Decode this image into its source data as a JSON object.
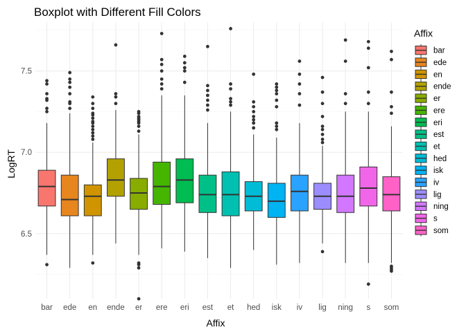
{
  "chart_data": {
    "type": "boxplot",
    "title": "Boxplot with Different Fill Colors",
    "xlabel": "Affix",
    "ylabel": "LogRT",
    "ylim": [
      6.1,
      7.8
    ],
    "yticks": [
      6.5,
      7.0,
      7.5
    ],
    "ytick_labels": [
      "6.5",
      "7.0",
      "7.5"
    ],
    "grid": true,
    "legend": {
      "title": "Affix",
      "position": "right"
    },
    "categories": [
      "bar",
      "ede",
      "en",
      "ende",
      "er",
      "ere",
      "eri",
      "est",
      "et",
      "hed",
      "isk",
      "iv",
      "lig",
      "ning",
      "s",
      "som"
    ],
    "colors": [
      "#F8766D",
      "#E7851E",
      "#D09400",
      "#B2A100",
      "#89AC00",
      "#45B500",
      "#00BC51",
      "#00C087",
      "#00C0B2",
      "#00BCD6",
      "#00B3F2",
      "#29A3FF",
      "#9C8DFF",
      "#D277FF",
      "#F166E8",
      "#FF61C7"
    ],
    "boxes": [
      {
        "label": "bar",
        "whisker_low": 6.37,
        "q1": 6.67,
        "median": 6.79,
        "q3": 6.89,
        "whisker_high": 7.18,
        "outliers": [
          6.31,
          7.25,
          7.27,
          7.32,
          7.33,
          7.36,
          7.42,
          7.44
        ]
      },
      {
        "label": "ede",
        "whisker_low": 6.29,
        "q1": 6.61,
        "median": 6.71,
        "q3": 6.86,
        "whisker_high": 7.24,
        "outliers": [
          7.27,
          7.3,
          7.31,
          7.36,
          7.4,
          7.43,
          7.45,
          7.49
        ]
      },
      {
        "label": "en",
        "whisker_low": 6.37,
        "q1": 6.61,
        "median": 6.73,
        "q3": 6.8,
        "whisker_high": 7.06,
        "outliers": [
          6.32,
          7.08,
          7.1,
          7.12,
          7.14,
          7.16,
          7.18,
          7.19,
          7.21,
          7.23,
          7.24,
          7.27,
          7.3,
          7.34
        ]
      },
      {
        "label": "ende",
        "whisker_low": 6.44,
        "q1": 6.73,
        "median": 6.83,
        "q3": 6.96,
        "whisker_high": 7.26,
        "outliers": [
          7.3,
          7.34,
          7.36,
          7.66
        ]
      },
      {
        "label": "er",
        "whisker_low": 6.37,
        "q1": 6.65,
        "median": 6.75,
        "q3": 6.84,
        "whisker_high": 7.11,
        "outliers": [
          6.1,
          6.29,
          6.31,
          6.32,
          7.13,
          7.16,
          7.18,
          7.19,
          7.2,
          7.21,
          7.22,
          7.24,
          7.25
        ]
      },
      {
        "label": "ere",
        "whisker_low": 6.41,
        "q1": 6.68,
        "median": 6.79,
        "q3": 6.94,
        "whisker_high": 7.35,
        "outliers": [
          7.39,
          7.42,
          7.45,
          7.5,
          7.54,
          7.57,
          7.73
        ]
      },
      {
        "label": "eri",
        "whisker_low": 6.39,
        "q1": 6.69,
        "median": 6.83,
        "q3": 6.96,
        "whisker_high": 7.35,
        "outliers": [
          7.43,
          7.5,
          7.52,
          7.55,
          7.59
        ]
      },
      {
        "label": "est",
        "whisker_low": 6.35,
        "q1": 6.63,
        "median": 6.74,
        "q3": 6.86,
        "whisker_high": 7.18,
        "outliers": [
          7.26,
          7.29,
          7.32,
          7.35,
          7.38,
          7.41,
          7.65
        ]
      },
      {
        "label": "et",
        "whisker_low": 6.29,
        "q1": 6.61,
        "median": 6.74,
        "q3": 6.88,
        "whisker_high": 7.25,
        "outliers": [
          7.29,
          7.31,
          7.33,
          7.39,
          7.42,
          7.76
        ]
      },
      {
        "label": "hed",
        "whisker_low": 6.4,
        "q1": 6.64,
        "median": 6.73,
        "q3": 6.82,
        "whisker_high": 7.11,
        "outliers": [
          7.15,
          7.18,
          7.2,
          7.22,
          7.25,
          7.28,
          7.31,
          7.48
        ]
      },
      {
        "label": "isk",
        "whisker_low": 6.31,
        "q1": 6.6,
        "median": 6.7,
        "q3": 6.81,
        "whisker_high": 7.09,
        "outliers": [
          7.14,
          7.16,
          7.18,
          7.28,
          7.32,
          7.36,
          7.38,
          7.4,
          7.42
        ]
      },
      {
        "label": "iv",
        "whisker_low": 6.32,
        "q1": 6.64,
        "median": 6.76,
        "q3": 6.86,
        "whisker_high": 7.18,
        "outliers": [
          7.29,
          7.36,
          7.42,
          7.48,
          7.56
        ]
      },
      {
        "label": "lig",
        "whisker_low": 6.44,
        "q1": 6.65,
        "median": 6.73,
        "q3": 6.81,
        "whisker_high": 7.04,
        "outliers": [
          6.39,
          7.06,
          7.08,
          7.11,
          7.14,
          7.16,
          7.22,
          7.3,
          7.37,
          7.46
        ]
      },
      {
        "label": "ning",
        "whisker_low": 6.32,
        "q1": 6.63,
        "median": 6.73,
        "q3": 6.86,
        "whisker_high": 7.25,
        "outliers": [
          7.3,
          7.36,
          7.56,
          7.69
        ]
      },
      {
        "label": "s",
        "whisker_low": 6.32,
        "q1": 6.67,
        "median": 6.78,
        "q3": 6.91,
        "whisker_high": 7.25,
        "outliers": [
          6.19,
          7.3,
          7.37,
          7.52,
          7.64,
          7.68
        ]
      },
      {
        "label": "som",
        "whisker_low": 6.32,
        "q1": 6.64,
        "median": 6.74,
        "q3": 6.85,
        "whisker_high": 7.16,
        "outliers": [
          6.27,
          6.28,
          6.29,
          6.3,
          7.24,
          7.28,
          7.37,
          7.57,
          7.62
        ]
      }
    ]
  }
}
